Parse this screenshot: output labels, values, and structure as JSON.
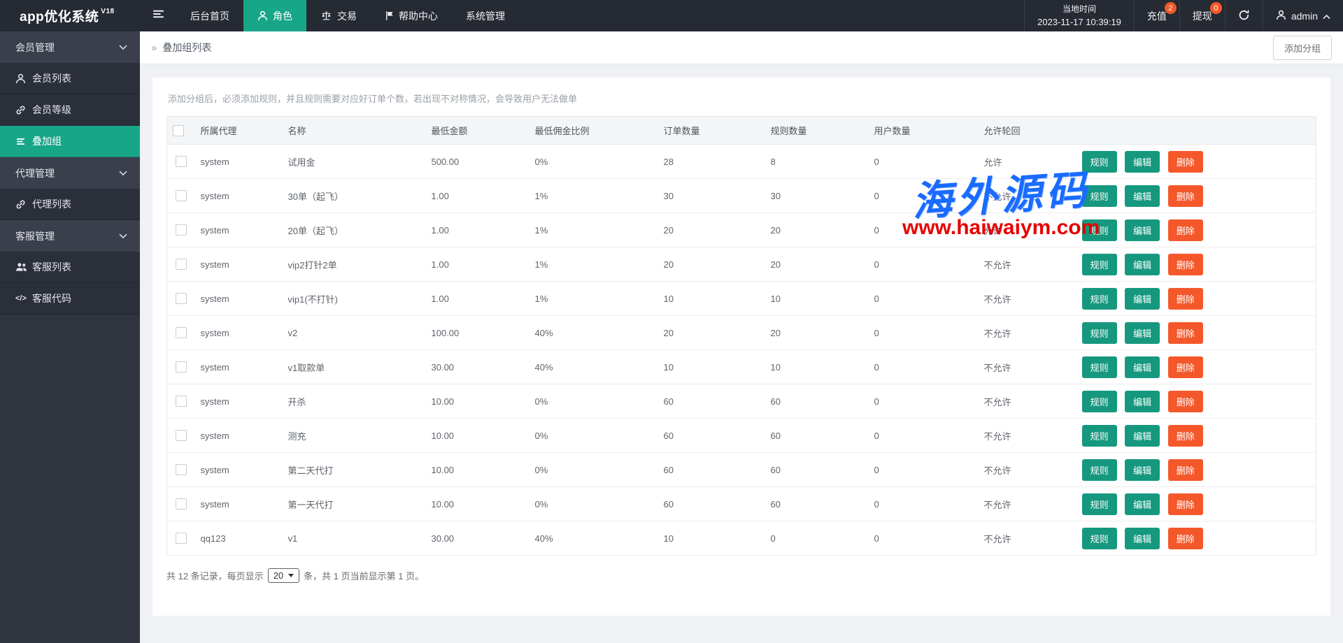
{
  "topbar": {
    "logo": "app优化系统",
    "logo_version": "V18",
    "nav": [
      {
        "label": "后台首页",
        "active": false
      },
      {
        "label": "角色",
        "icon": "user",
        "active": true
      },
      {
        "label": "交易",
        "icon": "scales",
        "active": false
      },
      {
        "label": "帮助中心",
        "icon": "flag",
        "active": false
      },
      {
        "label": "系统管理",
        "active": false
      }
    ],
    "time_label": "当地时间",
    "time_value": "2023-11-17 10:39:19",
    "recharge": {
      "label": "充值",
      "badge": "2"
    },
    "withdraw": {
      "label": "提现",
      "badge": "0"
    },
    "username": "admin"
  },
  "sidebar": {
    "items": [
      {
        "label": "会员管理",
        "type": "parent",
        "chevron": "chevDown"
      },
      {
        "label": "会员列表",
        "type": "child",
        "icon": "user"
      },
      {
        "label": "会员等级",
        "type": "child",
        "icon": "link"
      },
      {
        "label": "叠加组",
        "type": "child",
        "icon": "list",
        "active": true
      },
      {
        "label": "代理管理",
        "type": "parent",
        "chevron": "chevDown"
      },
      {
        "label": "代理列表",
        "type": "child",
        "icon": "link"
      },
      {
        "label": "客服管理",
        "type": "parent",
        "chevron": "chevDown"
      },
      {
        "label": "客服列表",
        "type": "child",
        "icon": "users"
      },
      {
        "label": "客服代码",
        "type": "child",
        "icon": "code"
      }
    ]
  },
  "breadcrumb": {
    "marker": "»",
    "title": "叠加组列表"
  },
  "page": {
    "add_group_button": "添加分组"
  },
  "table": {
    "hint": "添加分组后，必须添加规则，并且规则需要对应好订单个数，若出现不对称情况，会导致用户无法做单",
    "columns": [
      "所属代理",
      "名称",
      "最低金额",
      "最低佣金比例",
      "订单数量",
      "规则数量",
      "用户数量",
      "允许轮回"
    ],
    "action_labels": {
      "rule": "规则",
      "edit": "编辑",
      "delete": "删除"
    },
    "rows": [
      {
        "agent": "system",
        "name": "试用金",
        "min_amount": "500.00",
        "commission": "0%",
        "orders": "28",
        "rules": "8",
        "users": "0",
        "loop": "允许"
      },
      {
        "agent": "system",
        "name": "30单（起飞）",
        "min_amount": "1.00",
        "commission": "1%",
        "orders": "30",
        "rules": "30",
        "users": "0",
        "loop": "不允许"
      },
      {
        "agent": "system",
        "name": "20单（起飞）",
        "min_amount": "1.00",
        "commission": "1%",
        "orders": "20",
        "rules": "20",
        "users": "0",
        "loop": "允许"
      },
      {
        "agent": "system",
        "name": "vip2打针2单",
        "min_amount": "1.00",
        "commission": "1%",
        "orders": "20",
        "rules": "20",
        "users": "0",
        "loop": "不允许"
      },
      {
        "agent": "system",
        "name": "vip1(不打针)",
        "min_amount": "1.00",
        "commission": "1%",
        "orders": "10",
        "rules": "10",
        "users": "0",
        "loop": "不允许"
      },
      {
        "agent": "system",
        "name": "v2",
        "min_amount": "100.00",
        "commission": "40%",
        "orders": "20",
        "rules": "20",
        "users": "0",
        "loop": "不允许"
      },
      {
        "agent": "system",
        "name": "v1取款单",
        "min_amount": "30.00",
        "commission": "40%",
        "orders": "10",
        "rules": "10",
        "users": "0",
        "loop": "不允许"
      },
      {
        "agent": "system",
        "name": "开杀",
        "min_amount": "10.00",
        "commission": "0%",
        "orders": "60",
        "rules": "60",
        "users": "0",
        "loop": "不允许"
      },
      {
        "agent": "system",
        "name": "测充",
        "min_amount": "10.00",
        "commission": "0%",
        "orders": "60",
        "rules": "60",
        "users": "0",
        "loop": "不允许"
      },
      {
        "agent": "system",
        "name": "第二天代打",
        "min_amount": "10.00",
        "commission": "0%",
        "orders": "60",
        "rules": "60",
        "users": "0",
        "loop": "不允许"
      },
      {
        "agent": "system",
        "name": "第一天代打",
        "min_amount": "10.00",
        "commission": "0%",
        "orders": "60",
        "rules": "60",
        "users": "0",
        "loop": "不允许"
      },
      {
        "agent": "qq123",
        "name": "v1",
        "min_amount": "30.00",
        "commission": "40%",
        "orders": "10",
        "rules": "0",
        "users": "0",
        "loop": "不允许"
      }
    ]
  },
  "pagination": {
    "prefix": "共 12 条记录，每页显示",
    "page_size": "20",
    "suffix": "条，共 1 页当前显示第 1 页。"
  },
  "watermark": {
    "line1": "海外源码",
    "line2": "www.haiwaiym.com"
  },
  "colors": {
    "accent_teal": "#18a689",
    "button_teal": "#16987f",
    "button_orange": "#f4582a",
    "badge_red": "#f4582a",
    "topbar_bg": "#262a33",
    "sidebar_bg": "#30343f",
    "watermark_blue": "#1a6bff",
    "watermark_red": "#e60000"
  }
}
